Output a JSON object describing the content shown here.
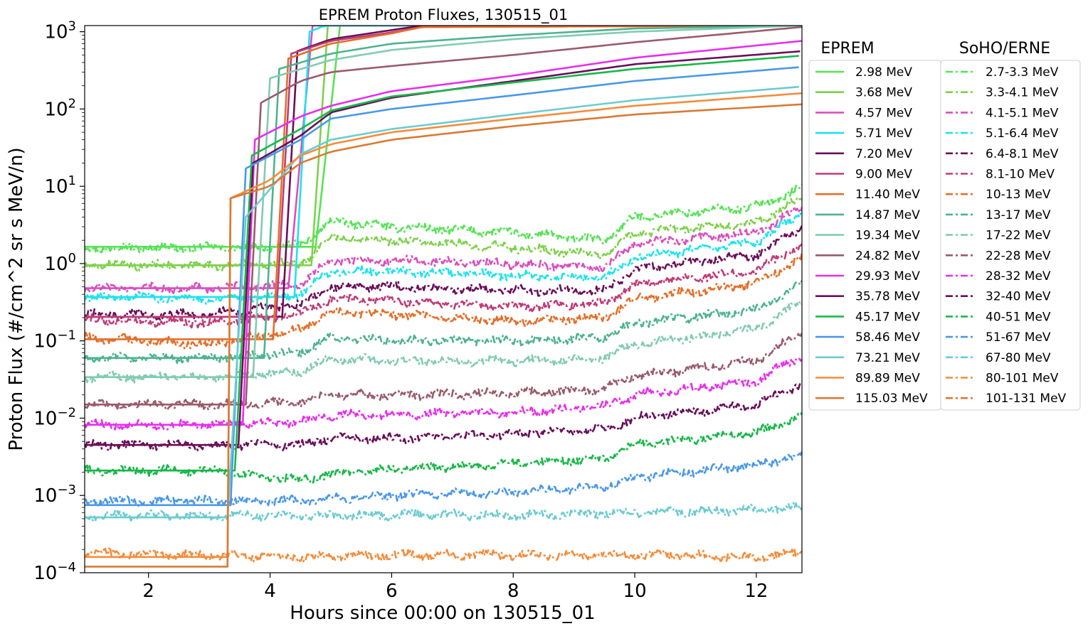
{
  "chart_data": {
    "type": "line",
    "title": "EPREM Proton Fluxes, 130515_01",
    "xlabel": "Hours since 00:00 on 130515_01",
    "ylabel": "Proton Flux (#/cm^2 sr s MeV/n)",
    "xlim": [
      0.95,
      12.75
    ],
    "ylim": [
      0.0001,
      1200
    ],
    "yscale": "log",
    "x_ticks": [
      2,
      4,
      6,
      8,
      10,
      12
    ],
    "y_ticks": [
      {
        "value": 0.0001,
        "base": "10",
        "exp": "−4"
      },
      {
        "value": 0.001,
        "base": "10",
        "exp": "−3"
      },
      {
        "value": 0.01,
        "base": "10",
        "exp": "−2"
      },
      {
        "value": 0.1,
        "base": "10",
        "exp": "−1"
      },
      {
        "value": 1,
        "base": "10",
        "exp": "0"
      },
      {
        "value": 10,
        "base": "10",
        "exp": "1"
      },
      {
        "value": 100,
        "base": "10",
        "exp": "2"
      },
      {
        "value": 1000,
        "base": "10",
        "exp": "3"
      }
    ],
    "grid": false,
    "legend_eprem_title": "EPREM",
    "legend_erne_title": "SoHO/ERNE",
    "eprem_series": [
      {
        "name": "2.98 MeV",
        "color": "#56e356",
        "pre": 1.65,
        "t_rise": 4.75,
        "t_full": 5.15,
        "x": [
          5.15,
          6.0,
          8.0,
          10.0,
          12.75
        ],
        "y": [
          1200,
          1200,
          1200,
          1200,
          1200
        ]
      },
      {
        "name": "3.68 MeV",
        "color": "#7ed14a",
        "pre": 0.95,
        "t_rise": 4.68,
        "t_full": 4.95,
        "x": [
          4.95,
          6.0,
          12.75
        ],
        "y": [
          1200,
          1200,
          1200
        ]
      },
      {
        "name": "4.57 MeV",
        "color": "#d94fbf",
        "pre": 0.48,
        "t_rise": 4.3,
        "t_full": 4.7,
        "x": [
          4.7,
          6.0,
          12.75
        ],
        "y": [
          1200,
          1200,
          1200
        ]
      },
      {
        "name": "5.71 MeV",
        "color": "#1ee3ee",
        "pre": 0.37,
        "t_rise": 4.4,
        "t_full": 4.65,
        "x": [
          4.65,
          4.9,
          12.75
        ],
        "y": [
          1000,
          1200,
          1200
        ]
      },
      {
        "name": "7.20 MeV",
        "color": "#6a0f5a",
        "pre": 0.205,
        "t_rise": 4.2,
        "t_full": 4.45,
        "x": [
          4.45,
          5.0,
          6.0,
          6.5,
          12.75
        ],
        "y": [
          560,
          800,
          1050,
          1200,
          1200
        ]
      },
      {
        "name": "9.00 MeV",
        "color": "#c03b77",
        "pre": 0.205,
        "t_rise": 4.1,
        "t_full": 4.35,
        "x": [
          4.35,
          5.0,
          6.0,
          6.5,
          12.75
        ],
        "y": [
          520,
          760,
          980,
          1150,
          1200
        ]
      },
      {
        "name": "11.40 MeV",
        "color": "#e46f2a",
        "pre": 0.105,
        "t_rise": 4.05,
        "t_full": 4.3,
        "x": [
          4.3,
          5.0,
          6.0,
          6.5,
          12.75
        ],
        "y": [
          450,
          700,
          950,
          1150,
          1200
        ]
      },
      {
        "name": "14.87 MeV",
        "color": "#4db38f",
        "pre": 0.06,
        "t_rise": 3.9,
        "t_full": 4.15,
        "x": [
          4.15,
          5.0,
          6.0,
          8.0,
          10.0,
          12.75
        ],
        "y": [
          330,
          520,
          700,
          900,
          1100,
          1200
        ]
      },
      {
        "name": "19.34 MeV",
        "color": "#82cbb3",
        "pre": 0.034,
        "t_rise": 3.72,
        "t_full": 4.0,
        "x": [
          4.0,
          5.0,
          6.0,
          8.0,
          10.0,
          12.75
        ],
        "y": [
          250,
          430,
          580,
          800,
          1000,
          1200
        ]
      },
      {
        "name": "24.82 MeV",
        "color": "#9a5b6b",
        "pre": 0.015,
        "t_rise": 3.6,
        "t_full": 3.85,
        "x": [
          3.85,
          4.5,
          5.0,
          6.0,
          8.0,
          10.0,
          12.75
        ],
        "y": [
          120,
          230,
          300,
          360,
          500,
          730,
          1150
        ]
      },
      {
        "name": "29.93 MeV",
        "color": "#e72fed",
        "pre": 0.0082,
        "t_rise": 3.55,
        "t_full": 3.75,
        "x": [
          3.75,
          4.5,
          5.0,
          6.0,
          8.0,
          10.0,
          12.75
        ],
        "y": [
          40,
          80,
          110,
          170,
          270,
          460,
          760
        ]
      },
      {
        "name": "35.78 MeV",
        "color": "#6a0f5a",
        "pre": 0.0045,
        "t_rise": 3.48,
        "t_full": 3.72,
        "x": [
          3.72,
          4.5,
          5.0,
          6.0,
          8.0,
          10.0,
          12.75
        ],
        "y": [
          20,
          45,
          90,
          140,
          230,
          380,
          560
        ]
      },
      {
        "name": "45.17 MeV",
        "color": "#18b84a",
        "pre": 0.0021,
        "t_rise": 3.42,
        "t_full": 3.7,
        "x": [
          3.7,
          4.5,
          5.0,
          6.0,
          8.0,
          10.0,
          12.75
        ],
        "y": [
          25,
          55,
          95,
          145,
          220,
          330,
          490
        ]
      },
      {
        "name": "58.46 MeV",
        "color": "#4a98e8",
        "pre": 0.00075,
        "t_rise": 3.35,
        "t_full": 3.6,
        "x": [
          3.6,
          4.5,
          5.0,
          6.0,
          8.0,
          10.0,
          12.75
        ],
        "y": [
          17,
          40,
          75,
          100,
          150,
          230,
          350
        ]
      },
      {
        "name": "73.21 MeV",
        "color": "#6ccbd2",
        "pre": 0.00052,
        "t_rise": 3.3,
        "t_full": 3.6,
        "x": [
          3.6,
          4.5,
          5.0,
          6.0,
          8.0,
          10.0,
          12.75
        ],
        "y": [
          4,
          26,
          40,
          55,
          85,
          130,
          195
        ]
      },
      {
        "name": "89.89 MeV",
        "color": "#f58c3a",
        "pre": 0.00016,
        "t_rise": 3.3,
        "t_full": 3.35,
        "x": [
          3.35,
          4.0,
          4.5,
          5.0,
          6.0,
          8.0,
          10.0,
          12.75
        ],
        "y": [
          7,
          12,
          25,
          35,
          50,
          75,
          110,
          160
        ]
      },
      {
        "name": "115.03 MeV",
        "color": "#d97a34",
        "pre": 0.00012,
        "t_rise": 3.3,
        "t_full": 3.35,
        "x": [
          3.35,
          4.0,
          4.5,
          5.0,
          6.0,
          8.0,
          10.0,
          12.75
        ],
        "y": [
          7,
          10,
          20,
          28,
          40,
          60,
          85,
          115
        ]
      }
    ],
    "erne_series": [
      {
        "name": "2.7-3.3 MeV",
        "color": "#56e356",
        "x": [
          1.0,
          3.0,
          4.5,
          5.0,
          6.0,
          8.0,
          9.5,
          10.0,
          12.0,
          12.75
        ],
        "y": [
          1.6,
          1.6,
          1.7,
          3.5,
          3.0,
          2.5,
          2.0,
          4.0,
          5.5,
          9.5
        ]
      },
      {
        "name": "3.3-4.1 MeV",
        "color": "#7ed14a",
        "x": [
          1.0,
          3.0,
          4.5,
          5.0,
          6.0,
          8.0,
          9.5,
          10.0,
          12.0,
          12.75
        ],
        "y": [
          0.95,
          0.95,
          1.0,
          2.2,
          2.0,
          1.6,
          1.3,
          2.5,
          3.4,
          7.0
        ]
      },
      {
        "name": "4.1-5.1 MeV",
        "color": "#d94fbf",
        "x": [
          1.0,
          3.0,
          4.5,
          5.0,
          6.0,
          8.0,
          9.5,
          10.0,
          12.0,
          12.75
        ],
        "y": [
          0.48,
          0.48,
          0.55,
          1.1,
          1.1,
          1.0,
          0.9,
          1.8,
          2.5,
          5.3
        ]
      },
      {
        "name": "5.1-6.4 MeV",
        "color": "#1ee3ee",
        "x": [
          1.0,
          3.0,
          4.5,
          5.0,
          6.0,
          8.0,
          9.5,
          10.0,
          12.0,
          12.75
        ],
        "y": [
          0.37,
          0.35,
          0.4,
          0.8,
          0.8,
          0.7,
          0.65,
          1.2,
          1.9,
          4.5
        ]
      },
      {
        "name": "6.4-8.1 MeV",
        "color": "#6a0f5a",
        "x": [
          1.0,
          3.0,
          4.5,
          5.0,
          6.0,
          8.0,
          9.5,
          10.0,
          12.0,
          12.75
        ],
        "y": [
          0.22,
          0.22,
          0.3,
          0.5,
          0.5,
          0.45,
          0.45,
          0.85,
          1.3,
          3.0
        ]
      },
      {
        "name": "8.1-10 MeV",
        "color": "#c03b77",
        "x": [
          1.0,
          3.0,
          4.5,
          5.0,
          6.0,
          8.0,
          9.5,
          10.0,
          12.0,
          12.75
        ],
        "y": [
          0.19,
          0.17,
          0.22,
          0.35,
          0.33,
          0.28,
          0.3,
          0.55,
          0.8,
          1.8
        ]
      },
      {
        "name": "10-13 MeV",
        "color": "#e46f2a",
        "x": [
          1.0,
          3.0,
          4.5,
          5.0,
          6.0,
          8.0,
          9.5,
          10.0,
          12.0,
          12.75
        ],
        "y": [
          0.11,
          0.09,
          0.14,
          0.24,
          0.22,
          0.18,
          0.2,
          0.35,
          0.55,
          1.2
        ]
      },
      {
        "name": "13-17 MeV",
        "color": "#4db38f",
        "x": [
          1.0,
          3.0,
          4.5,
          5.0,
          6.0,
          8.0,
          9.5,
          10.0,
          12.0,
          12.75
        ],
        "y": [
          0.06,
          0.06,
          0.07,
          0.11,
          0.1,
          0.1,
          0.11,
          0.17,
          0.25,
          0.55
        ]
      },
      {
        "name": "17-22 MeV",
        "color": "#82cbb3",
        "x": [
          1.0,
          3.0,
          4.5,
          5.0,
          6.0,
          8.0,
          9.5,
          10.0,
          12.0,
          12.75
        ],
        "y": [
          0.034,
          0.034,
          0.04,
          0.06,
          0.055,
          0.055,
          0.06,
          0.09,
          0.14,
          0.33
        ]
      },
      {
        "name": "22-28 MeV",
        "color": "#9a5b6b",
        "x": [
          1.0,
          3.0,
          4.5,
          5.0,
          6.0,
          8.0,
          9.5,
          10.0,
          12.0,
          12.75
        ],
        "y": [
          0.015,
          0.015,
          0.016,
          0.02,
          0.02,
          0.021,
          0.024,
          0.035,
          0.055,
          0.13
        ]
      },
      {
        "name": "28-32 MeV",
        "color": "#e72fed",
        "x": [
          1.0,
          3.0,
          4.5,
          5.0,
          6.0,
          8.0,
          9.5,
          10.0,
          12.0,
          12.75
        ],
        "y": [
          0.0082,
          0.0082,
          0.009,
          0.011,
          0.011,
          0.012,
          0.014,
          0.02,
          0.03,
          0.065
        ]
      },
      {
        "name": "32-40 MeV",
        "color": "#6a0f5a",
        "x": [
          1.0,
          3.0,
          4.5,
          5.0,
          6.0,
          8.0,
          9.5,
          10.0,
          12.0,
          12.75
        ],
        "y": [
          0.0045,
          0.0045,
          0.0045,
          0.0055,
          0.0055,
          0.0062,
          0.0072,
          0.01,
          0.015,
          0.028
        ]
      },
      {
        "name": "40-51 MeV",
        "color": "#18b84a",
        "x": [
          1.0,
          3.0,
          4.5,
          5.0,
          6.0,
          8.0,
          9.5,
          10.0,
          12.0,
          12.75
        ],
        "y": [
          0.0021,
          0.0021,
          0.0016,
          0.0019,
          0.0022,
          0.0026,
          0.003,
          0.0045,
          0.0065,
          0.011
        ]
      },
      {
        "name": "51-67 MeV",
        "color": "#4a98e8",
        "x": [
          1.0,
          3.0,
          4.5,
          5.0,
          6.0,
          8.0,
          9.5,
          10.0,
          12.0,
          12.75
        ],
        "y": [
          0.00085,
          0.00085,
          0.00085,
          0.0009,
          0.001,
          0.0011,
          0.0013,
          0.0017,
          0.0025,
          0.0033
        ]
      },
      {
        "name": "67-80 MeV",
        "color": "#6ccbd2",
        "x": [
          1.0,
          3.0,
          4.5,
          5.0,
          6.0,
          8.0,
          9.5,
          10.0,
          12.0,
          12.75
        ],
        "y": [
          0.00055,
          0.00055,
          0.00055,
          0.00055,
          0.00056,
          0.00056,
          0.00058,
          0.0006,
          0.00065,
          0.00072
        ]
      },
      {
        "name": "80-101 MeV",
        "color": "#f58c3a",
        "x": [
          1.0,
          3.0,
          4.5,
          5.0,
          6.0,
          8.0,
          9.5,
          10.0,
          12.0,
          12.75
        ],
        "y": [
          0.00018,
          0.00017,
          0.00016,
          0.00016,
          0.00017,
          0.00017,
          0.00017,
          0.00017,
          0.00016,
          0.00018
        ]
      },
      {
        "name": "101-131 MeV",
        "color": "#d97a34",
        "x": [],
        "y": []
      }
    ]
  }
}
